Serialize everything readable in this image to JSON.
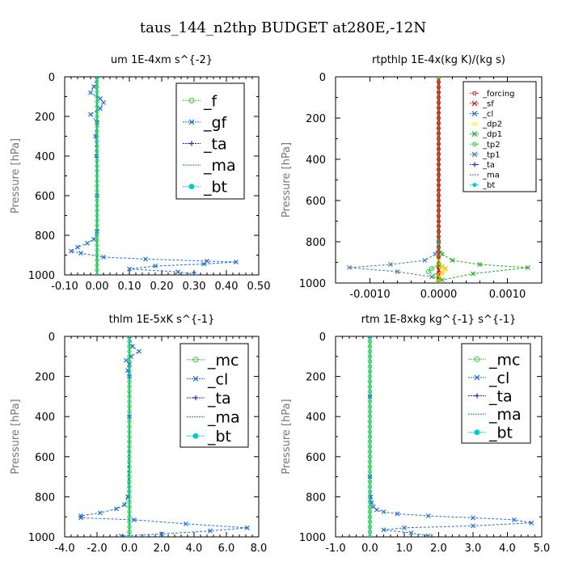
{
  "figure": {
    "title": "taus_144_n2thp  BUDGET at280E,-12N"
  },
  "chart_data": [
    {
      "type": "line",
      "title": "um   1E-4xm s^{-2}",
      "ylabel": "Pressure [hPa]",
      "xlim": [
        -0.1,
        0.5
      ],
      "ylim": [
        1000,
        0
      ],
      "xticks": [
        "-0.10",
        "0.00",
        "0.10",
        "0.20",
        "0.30",
        "0.40",
        "0.50"
      ],
      "xtick_values": [
        -0.1,
        0,
        0.1,
        0.2,
        0.3,
        0.4,
        0.5
      ],
      "yticks": [
        "0",
        "200",
        "400",
        "600",
        "800",
        "1000"
      ],
      "ytick_values": [
        0,
        200,
        400,
        600,
        800,
        1000
      ],
      "legend_style": "big",
      "legend": [
        "_f",
        "_gf",
        "_ta",
        "_ma",
        "_bt"
      ],
      "series": [
        {
          "name": "_f",
          "color": "#33cc33",
          "marker": "o",
          "width": 2,
          "x": [
            0,
            0,
            0,
            0,
            0,
            0,
            0,
            0,
            0,
            0,
            0
          ],
          "y": [
            0,
            100,
            200,
            300,
            400,
            500,
            600,
            700,
            800,
            900,
            1000
          ]
        },
        {
          "name": "_gf",
          "color": "#1f6fd6",
          "marker": "x",
          "width": 1,
          "x": [
            0,
            -0.01,
            -0.02,
            0.01,
            0.02,
            0.01,
            -0.02,
            0,
            -0.005,
            -0.002,
            0,
            0,
            -0.01,
            -0.03,
            -0.06,
            -0.08,
            -0.05,
            0.02,
            0.15,
            0.34,
            0.43,
            0.33,
            0.18,
            0.1,
            0.25,
            0.3
          ],
          "y": [
            0,
            50,
            80,
            110,
            130,
            160,
            190,
            230,
            300,
            400,
            600,
            780,
            820,
            840,
            860,
            880,
            890,
            910,
            920,
            930,
            935,
            945,
            955,
            970,
            985,
            995
          ]
        },
        {
          "name": "_bt",
          "color": "#00cccc",
          "marker": "none",
          "width": 1.5,
          "x": [
            0,
            0
          ],
          "y": [
            0,
            1000
          ]
        }
      ]
    },
    {
      "type": "line",
      "title": "rtpthlp   1E-4x(kg K)/(kg s)",
      "ylabel": "Pressure [hPa]",
      "xlim": [
        -0.0015,
        0.0015
      ],
      "ylim": [
        1000,
        0
      ],
      "xticks": [
        "-0.0010",
        "0.0000",
        "0.0010"
      ],
      "xtick_values": [
        -0.001,
        0,
        0.001
      ],
      "yticks": [
        "0",
        "200",
        "400",
        "600",
        "800",
        "1000"
      ],
      "ytick_values": [
        0,
        200,
        400,
        600,
        800,
        1000
      ],
      "legend_style": "small",
      "legend": [
        "_forcing",
        "_sf",
        "_cl",
        "_dp2",
        "_dp1",
        "_tp2",
        "_tp1",
        "_ta",
        "_ma",
        "_bt"
      ],
      "series": [
        {
          "name": "_forcing",
          "color": "#dd2222",
          "marker": "o",
          "width": 3,
          "x": [
            0,
            0
          ],
          "y": [
            0,
            1000
          ]
        },
        {
          "name": "_dp1",
          "color": "#22aa22",
          "marker": "x",
          "width": 1,
          "x": [
            0,
            0,
            5e-05,
            0.0002,
            0.0006,
            0.0013,
            0.0005,
            5e-05
          ],
          "y": [
            0,
            800,
            860,
            890,
            910,
            925,
            955,
            985
          ]
        },
        {
          "name": "_tp1",
          "color": "#4a7fa8",
          "marker": "x",
          "width": 1,
          "x": [
            0,
            0,
            -5e-05,
            -0.0002,
            -0.0007,
            -0.0013,
            -0.0006,
            -0.0001
          ],
          "y": [
            0,
            800,
            860,
            890,
            910,
            925,
            945,
            970
          ]
        },
        {
          "name": "_cl",
          "color": "#ffaa00",
          "marker": "x",
          "width": 1,
          "x": [
            0,
            0,
            5e-05,
            0.0001,
            5e-05,
            0
          ],
          "y": [
            0,
            890,
            920,
            930,
            950,
            990
          ]
        },
        {
          "name": "_dp2",
          "color": "#eeee33",
          "marker": "o",
          "width": 1,
          "x": [
            0,
            0,
            4e-05,
            8e-05,
            2e-05,
            0
          ],
          "y": [
            0,
            900,
            925,
            940,
            960,
            990
          ]
        },
        {
          "name": "_tp2",
          "color": "#22cc22",
          "marker": "o",
          "width": 1,
          "x": [
            0,
            0,
            -0.0001,
            -0.00015,
            -5e-05,
            0
          ],
          "y": [
            0,
            910,
            930,
            945,
            965,
            990
          ]
        }
      ]
    },
    {
      "type": "line",
      "title": "thlm   1E-5xK s^{-1}",
      "ylabel": "Pressure [hPa]",
      "xlim": [
        -4,
        8
      ],
      "ylim": [
        1000,
        0
      ],
      "xticks": [
        "-4.0",
        "-2.0",
        "0.0",
        "2.0",
        "4.0",
        "6.0",
        "8.0"
      ],
      "xtick_values": [
        -4,
        -2,
        0,
        2,
        4,
        6,
        8
      ],
      "yticks": [
        "0",
        "200",
        "400",
        "600",
        "800",
        "1000"
      ],
      "ytick_values": [
        0,
        200,
        400,
        600,
        800,
        1000
      ],
      "legend_style": "big",
      "legend": [
        "_mc",
        "_cl",
        "_ta",
        "_ma",
        "_bt"
      ],
      "series": [
        {
          "name": "_mc",
          "color": "#33cc33",
          "marker": "o",
          "width": 2,
          "x": [
            0,
            0,
            0,
            0,
            0,
            0,
            0,
            0,
            0,
            0,
            0
          ],
          "y": [
            0,
            100,
            200,
            300,
            400,
            500,
            600,
            700,
            800,
            900,
            1000
          ]
        },
        {
          "name": "_cl",
          "color": "#1f6fd6",
          "marker": "x",
          "width": 1,
          "x": [
            0,
            0.2,
            0.6,
            0.1,
            -0.2,
            0,
            -0.1,
            0,
            0,
            -0.1,
            -0.3,
            -0.8,
            -1.8,
            -3,
            -3,
            0.3,
            3.5,
            7.3,
            5,
            2,
            -0.5
          ],
          "y": [
            0,
            50,
            75,
            100,
            120,
            140,
            170,
            200,
            400,
            800,
            840,
            860,
            880,
            895,
            905,
            915,
            935,
            955,
            970,
            985,
            995
          ]
        },
        {
          "name": "_bt",
          "color": "#00cccc",
          "marker": "none",
          "width": 1.5,
          "x": [
            0,
            0
          ],
          "y": [
            0,
            1000
          ]
        }
      ]
    },
    {
      "type": "line",
      "title": "rtm   1E-8xkg kg^{-1} s^{-1}",
      "ylabel": "Pressure [hPa]",
      "xlim": [
        -1,
        5
      ],
      "ylim": [
        1000,
        0
      ],
      "xticks": [
        "-1.0",
        "0.0",
        "1.0",
        "2.0",
        "3.0",
        "4.0",
        "5.0"
      ],
      "xtick_values": [
        -1,
        0,
        1,
        2,
        3,
        4,
        5
      ],
      "yticks": [
        "0",
        "200",
        "400",
        "600",
        "800",
        "1000"
      ],
      "ytick_values": [
        0,
        200,
        400,
        600,
        800,
        1000
      ],
      "legend_style": "big",
      "legend": [
        "_mc",
        "_cl",
        "_ta",
        "_ma",
        "_bt"
      ],
      "series": [
        {
          "name": "_mc",
          "color": "#33cc33",
          "marker": "o",
          "width": 2,
          "x": [
            0,
            0,
            0,
            0,
            0,
            0,
            0,
            0,
            0,
            0,
            0
          ],
          "y": [
            0,
            100,
            200,
            300,
            400,
            500,
            600,
            700,
            800,
            900,
            1000
          ]
        },
        {
          "name": "_cl",
          "color": "#1f6fd6",
          "marker": "x",
          "width": 1,
          "x": [
            0,
            0,
            0,
            0.02,
            0.05,
            0.1,
            0.2,
            0.4,
            0.8,
            1.7,
            3.0,
            4.2,
            4.7,
            3.0,
            1.0,
            0.4,
            1.2,
            1.7
          ],
          "y": [
            0,
            300,
            700,
            800,
            830,
            850,
            865,
            875,
            885,
            895,
            905,
            915,
            930,
            945,
            955,
            965,
            980,
            995
          ]
        },
        {
          "name": "_bt",
          "color": "#00cccc",
          "marker": "none",
          "width": 1.5,
          "x": [
            0,
            0
          ],
          "y": [
            0,
            1000
          ]
        }
      ]
    }
  ]
}
